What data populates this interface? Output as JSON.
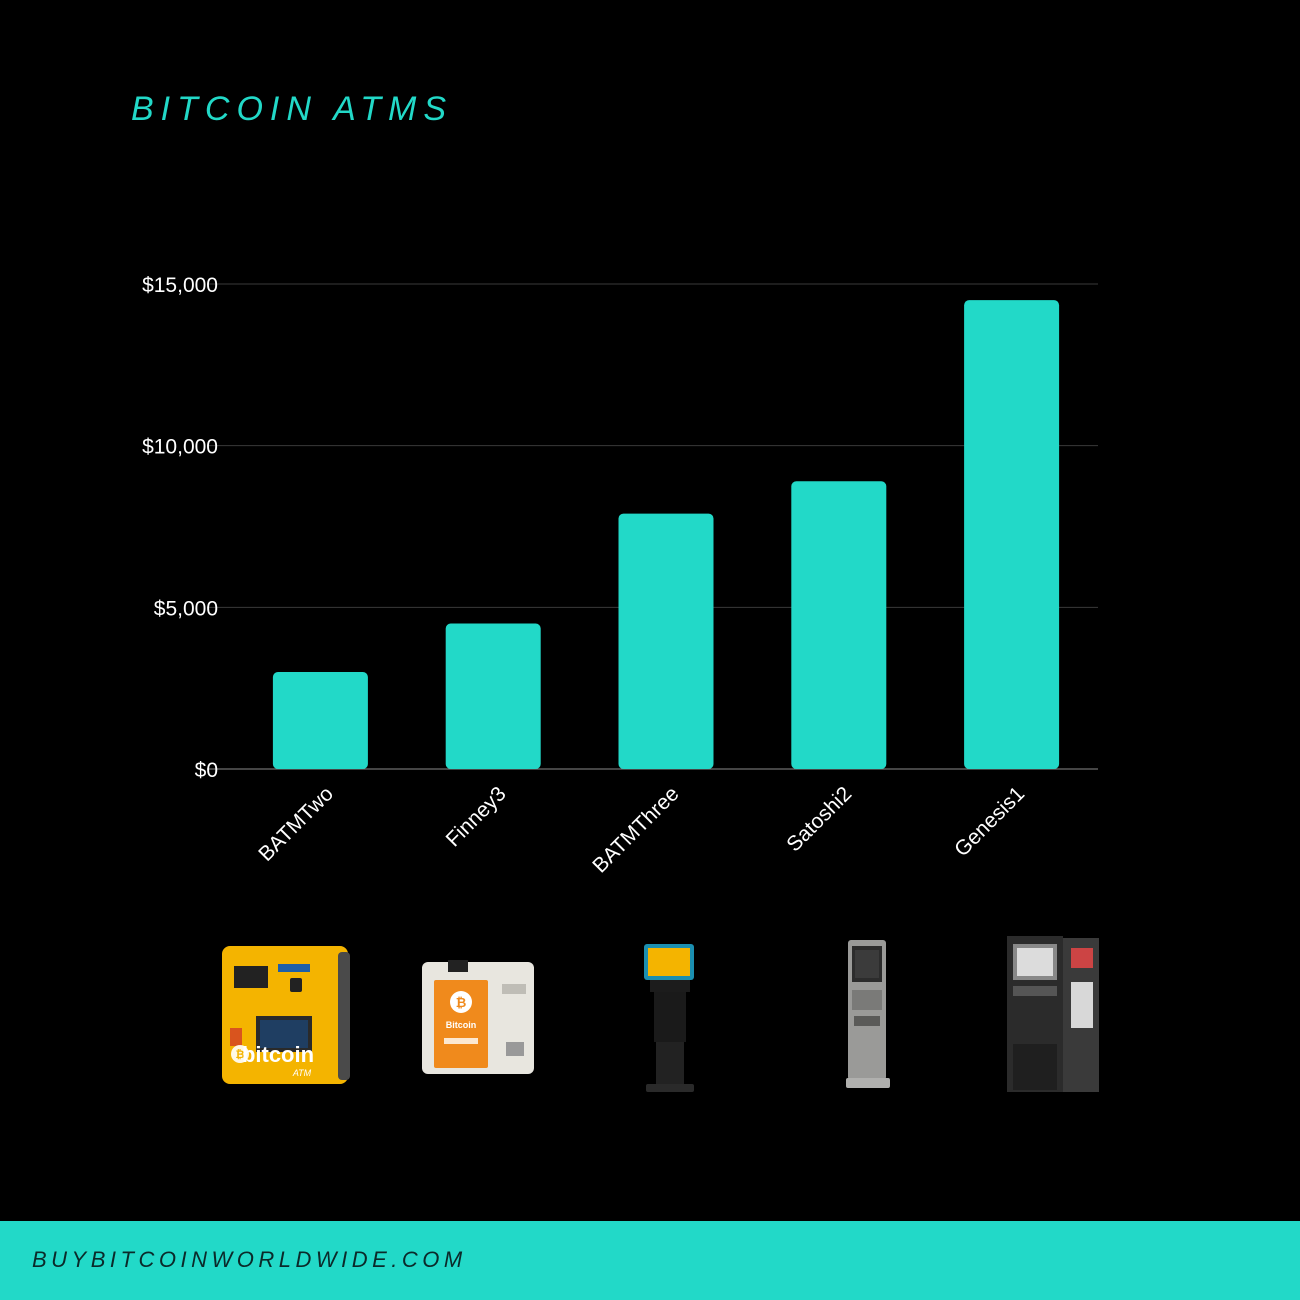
{
  "title": "BITCOIN ATMS",
  "footer": {
    "site": "BUYBITCOINWORLDWIDE.COM"
  },
  "colors": {
    "accent": "#22d9c8",
    "background": "#000000",
    "gridline": "#3a3a3a",
    "axis_text": "#ffffff"
  },
  "chart_data": {
    "type": "bar",
    "categories": [
      "BATMTwo",
      "Finney3",
      "BATMThree",
      "Satoshi2",
      "Genesis1"
    ],
    "values": [
      3000,
      4500,
      7900,
      8900,
      14500
    ],
    "ylim": [
      0,
      15000
    ],
    "yticks": [
      0,
      5000,
      10000,
      15000
    ],
    "ytick_labels": [
      "$0",
      "$5,000",
      "$10,000",
      "$15,000"
    ],
    "xlabel": "",
    "ylabel": "",
    "grid": true,
    "legend": "none"
  },
  "atm_images": [
    {
      "icon": "batmtwo-atm-icon",
      "logo_text": "bitcoin",
      "sub_text": "ATM"
    },
    {
      "icon": "finney3-atm-icon",
      "logo_text": "Bitcoin"
    },
    {
      "icon": "batmthree-atm-icon"
    },
    {
      "icon": "satoshi2-atm-icon"
    },
    {
      "icon": "genesis1-atm-icon"
    }
  ]
}
